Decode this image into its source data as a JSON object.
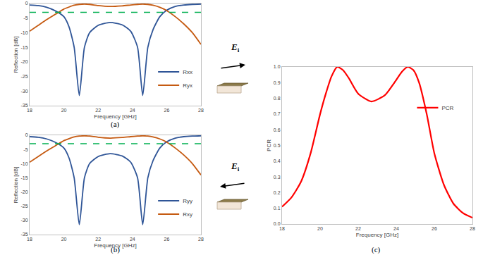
{
  "chart_data": [
    {
      "type": "line",
      "caption": "(a)",
      "xlabel": "Frequency [GHz]",
      "ylabel": "Reflection [dB]",
      "x": [
        18,
        18.5,
        19,
        19.5,
        20,
        20.3,
        20.6,
        20.9,
        21.2,
        21.5,
        22,
        22.7,
        23.4,
        23.9,
        24.3,
        24.6,
        24.9,
        25.2,
        25.6,
        26,
        26.5,
        27,
        27.5,
        28
      ],
      "series": [
        {
          "name": "Rxx",
          "color": "#2f5597",
          "values": [
            -0.5,
            -0.7,
            -1.3,
            -2.5,
            -4.5,
            -8,
            -15,
            -31.5,
            -15,
            -10,
            -7.5,
            -6.5,
            -7.3,
            -9.5,
            -15,
            -31.5,
            -15,
            -9,
            -4.5,
            -2.3,
            -1,
            -0.5,
            -0.3,
            -0.2
          ]
        },
        {
          "name": "Ryx",
          "color": "#c55a11",
          "values": [
            -9.5,
            -7.5,
            -5.5,
            -3.7,
            -1.9,
            -1.2,
            -0.6,
            -0.3,
            -0.2,
            -0.3,
            -0.7,
            -1,
            -0.8,
            -0.5,
            -0.3,
            -0.2,
            -0.3,
            -0.6,
            -1.3,
            -2.4,
            -4.5,
            -7,
            -10,
            -14
          ]
        }
      ],
      "hlines": [
        {
          "value": -3,
          "color": "#00b050",
          "line_style": "dashed"
        }
      ],
      "xlim": [
        18,
        28
      ],
      "xticks": [
        18,
        20,
        22,
        24,
        26,
        28
      ],
      "ylim": [
        -35,
        0
      ],
      "yticks": [
        -35,
        -30,
        -25,
        -20,
        -15,
        -10,
        -5,
        0
      ],
      "grid": false,
      "legend": "lower right"
    },
    {
      "type": "line",
      "caption": "(b)",
      "xlabel": "Frequency [GHz]",
      "ylabel": "Reflection [dB]",
      "x": [
        18,
        18.5,
        19,
        19.5,
        20,
        20.3,
        20.6,
        20.9,
        21.2,
        21.5,
        22,
        22.7,
        23.4,
        23.9,
        24.3,
        24.6,
        24.9,
        25.2,
        25.6,
        26,
        26.5,
        27,
        27.5,
        28
      ],
      "series": [
        {
          "name": "Ryy",
          "color": "#2f5597",
          "values": [
            -0.5,
            -0.7,
            -1.3,
            -2.5,
            -4.5,
            -8,
            -15,
            -31.5,
            -15,
            -10,
            -7.5,
            -6.5,
            -7.3,
            -9.5,
            -15,
            -31.5,
            -15,
            -9,
            -4.5,
            -2.3,
            -1,
            -0.5,
            -0.3,
            -0.2
          ]
        },
        {
          "name": "Rxy",
          "color": "#c55a11",
          "values": [
            -9.5,
            -7.5,
            -5.5,
            -3.7,
            -1.9,
            -1.2,
            -0.6,
            -0.3,
            -0.2,
            -0.3,
            -0.7,
            -1,
            -0.8,
            -0.5,
            -0.3,
            -0.2,
            -0.3,
            -0.6,
            -1.3,
            -2.4,
            -4.5,
            -7,
            -10,
            -14
          ]
        }
      ],
      "hlines": [
        {
          "value": -3,
          "color": "#00b050",
          "line_style": "dashed"
        }
      ],
      "xlim": [
        18,
        28
      ],
      "xticks": [
        18,
        20,
        22,
        24,
        26,
        28
      ],
      "ylim": [
        -35,
        0
      ],
      "yticks": [
        -35,
        -30,
        -25,
        -20,
        -15,
        -10,
        -5,
        0
      ],
      "grid": false,
      "legend": "lower right"
    },
    {
      "type": "line",
      "caption": "(c)",
      "xlabel": "Frequency [GHz]",
      "ylabel": "PCR",
      "x": [
        18,
        18.5,
        19,
        19.5,
        20,
        20.3,
        20.6,
        20.9,
        21.2,
        21.5,
        22,
        22.7,
        23.4,
        23.9,
        24.3,
        24.6,
        24.9,
        25.2,
        25.6,
        26,
        26.5,
        27,
        27.5,
        28
      ],
      "series": [
        {
          "name": "PCR",
          "color": "#ff0000",
          "values": [
            0.11,
            0.17,
            0.27,
            0.45,
            0.7,
            0.83,
            0.94,
            1.0,
            0.98,
            0.93,
            0.83,
            0.78,
            0.82,
            0.9,
            0.97,
            1.0,
            0.98,
            0.9,
            0.7,
            0.45,
            0.25,
            0.13,
            0.07,
            0.04
          ]
        }
      ],
      "xlim": [
        18,
        28
      ],
      "xticks": [
        18,
        20,
        22,
        24,
        26,
        28
      ],
      "ylim": [
        0,
        1
      ],
      "yticks": [
        {
          "value": 0,
          "label": "0.0"
        },
        {
          "value": 0.1,
          "label": "0.1"
        },
        {
          "value": 0.2,
          "label": "0.2"
        },
        {
          "value": 0.3,
          "label": "0.3"
        },
        {
          "value": 0.4,
          "label": "0.4"
        },
        {
          "value": 0.5,
          "label": "0.5"
        },
        {
          "value": 0.6,
          "label": "0.6"
        },
        {
          "value": 0.7,
          "label": "0.7"
        },
        {
          "value": 0.8,
          "label": "0.8"
        },
        {
          "value": 0.9,
          "label": "0.9"
        },
        {
          "value": 1,
          "label": "1.0"
        }
      ],
      "grid": false,
      "legend": "upper right"
    }
  ],
  "illustrations": [
    {
      "panel": "(a)",
      "label": {
        "base": "E",
        "subscript": "i"
      },
      "arrow": "right"
    },
    {
      "panel": "(b)",
      "label": {
        "base": "E",
        "subscript": "i"
      },
      "arrow": "left"
    }
  ]
}
